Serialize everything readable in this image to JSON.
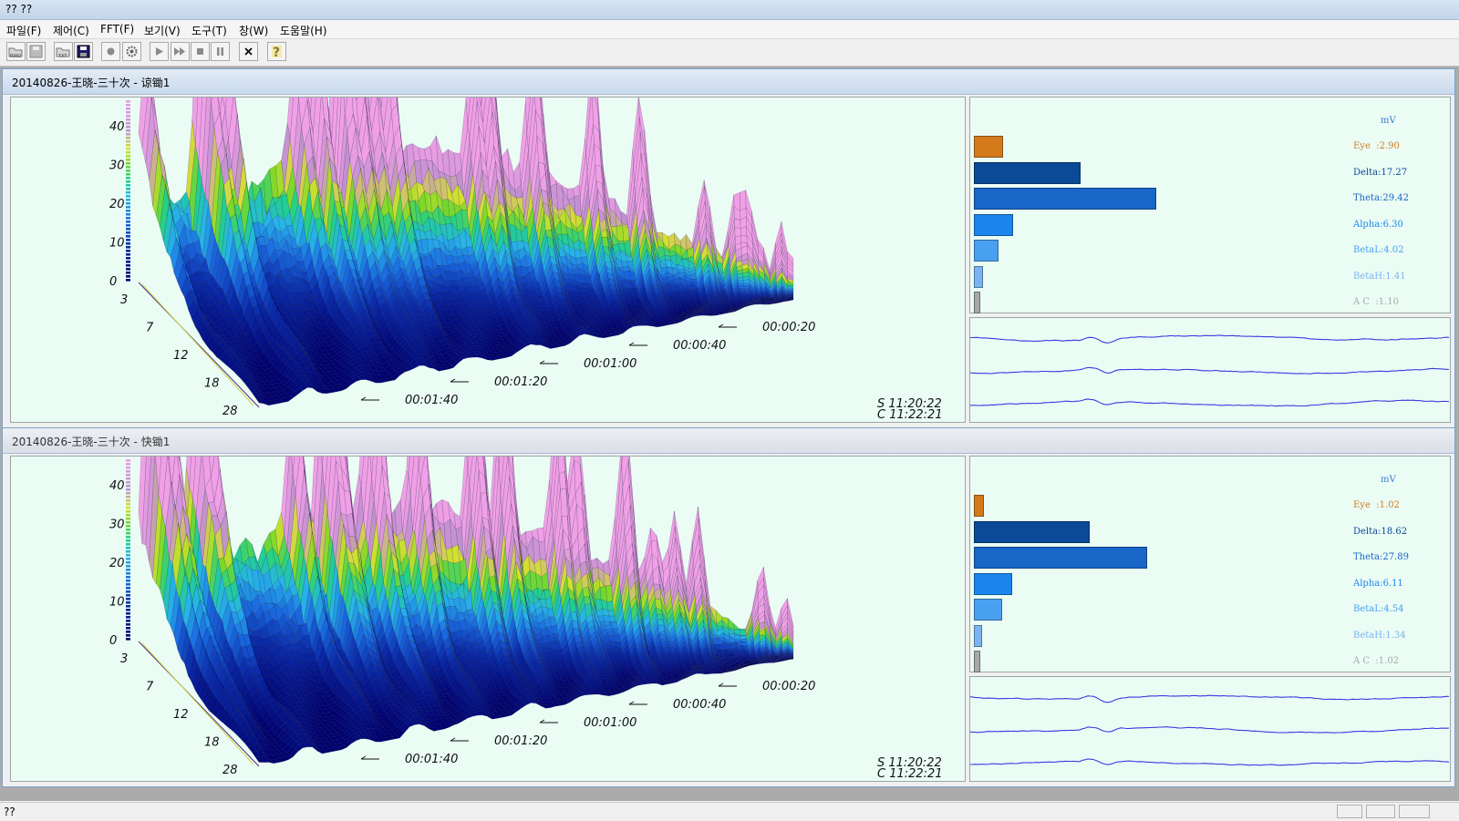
{
  "window": {
    "title": "?? ??"
  },
  "menu": [
    {
      "label": "파일(F)"
    },
    {
      "label": "제어(C)"
    },
    {
      "label": "FFT(F)"
    },
    {
      "label": "보기(V)"
    },
    {
      "label": "도구(T)"
    },
    {
      "label": "창(W)"
    },
    {
      "label": "도움말(H)"
    }
  ],
  "toolbar": [
    {
      "icon": "open-raw-icon"
    },
    {
      "icon": "save-disabled-icon"
    },
    {
      "icon": "open-txt-icon"
    },
    {
      "icon": "save-icon"
    },
    {
      "icon": "record-icon"
    },
    {
      "icon": "settings-icon"
    },
    {
      "icon": "play-icon"
    },
    {
      "icon": "fast-forward-icon"
    },
    {
      "icon": "stop-icon"
    },
    {
      "icon": "pause-icon"
    },
    {
      "icon": "close-icon"
    },
    {
      "icon": "help-icon"
    }
  ],
  "axis": {
    "z_ticks": [
      "0",
      "10",
      "20",
      "30",
      "40"
    ],
    "freq_ticks": [
      "3",
      "7",
      "12",
      "18",
      "28"
    ],
    "time_ticks": [
      "00:00:20",
      "00:00:40",
      "00:01:00",
      "00:01:20",
      "00:01:40"
    ]
  },
  "colors": {
    "panel_bg": "#eafcf4",
    "surface_low": "#00007a",
    "surface_mid": "#2a8fe8",
    "surface_peak": "#e08ad0",
    "wave": "#3a3ae0"
  },
  "windows": [
    {
      "title": "20140826-王晓-三十次 - 谅锄1",
      "start_time": "S  11:20:22",
      "current_time": "C  11:22:21",
      "unit": "mV",
      "bands": [
        {
          "name": "Eye",
          "label": "Eye  :2.90",
          "value": 2.9,
          "color": "#d47a1a"
        },
        {
          "name": "Delta",
          "label": "Delta:17.27",
          "value": 17.27,
          "color": "#0a4a96"
        },
        {
          "name": "Theta",
          "label": "Theta:29.42",
          "value": 29.42,
          "color": "#1866c8"
        },
        {
          "name": "Alpha",
          "label": "Alpha:6.30",
          "value": 6.3,
          "color": "#1a86ee"
        },
        {
          "name": "BetaL",
          "label": "BetaL:4.02",
          "value": 4.02,
          "color": "#4aa0f0"
        },
        {
          "name": "BetaH",
          "label": "BetaH:1.41",
          "value": 1.41,
          "color": "#7ab4f2"
        },
        {
          "name": "AC",
          "label": "A C  :1.10",
          "value": 1.1,
          "color": "#a8a8a8"
        }
      ]
    },
    {
      "title": "20140826-王晓-三十次 - 快锄1",
      "start_time": "S  11:20:22",
      "current_time": "C  11:22:21",
      "unit": "mV",
      "bands": [
        {
          "name": "Eye",
          "label": "Eye  :1.02",
          "value": 1.02,
          "color": "#d47a1a"
        },
        {
          "name": "Delta",
          "label": "Delta:18.62",
          "value": 18.62,
          "color": "#0a4a96"
        },
        {
          "name": "Theta",
          "label": "Theta:27.89",
          "value": 27.89,
          "color": "#1866c8"
        },
        {
          "name": "Alpha",
          "label": "Alpha:6.11",
          "value": 6.11,
          "color": "#1a86ee"
        },
        {
          "name": "BetaL",
          "label": "BetaL:4.54",
          "value": 4.54,
          "color": "#4aa0f0"
        },
        {
          "name": "BetaH",
          "label": "BetaH:1.34",
          "value": 1.34,
          "color": "#7ab4f2"
        },
        {
          "name": "AC",
          "label": "A C  :1.02",
          "value": 1.02,
          "color": "#a8a8a8"
        }
      ]
    }
  ],
  "statusbar": {
    "text": "??"
  }
}
